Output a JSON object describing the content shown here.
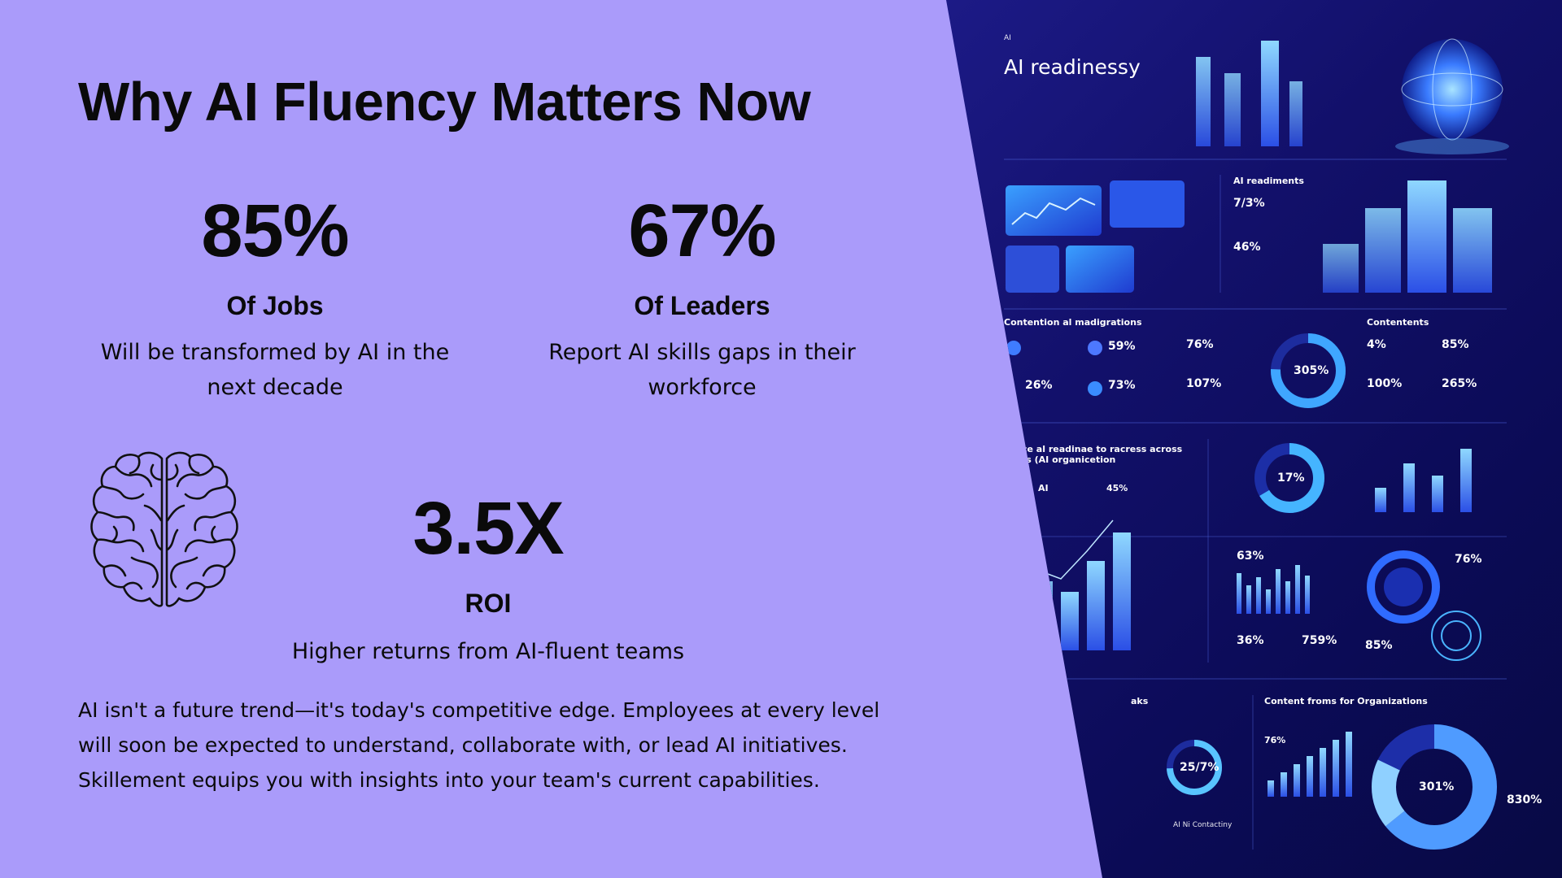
{
  "slide": {
    "title": "Why AI Fluency Matters Now",
    "stats": {
      "jobs": {
        "value": "85%",
        "label": "Of Jobs",
        "description": "Will be transformed by AI in the next decade"
      },
      "leaders": {
        "value": "67%",
        "label": "Of Leaders",
        "description": "Report AI skills gaps in their workforce"
      },
      "roi": {
        "value": "3.5X",
        "label": "ROI",
        "description": "Higher returns from AI-fluent teams"
      }
    },
    "paragraph": "AI isn't a future trend—it's today's competitive edge. Employees at every level will soon be expected to understand, collaborate with, or lead AI initiatives. Skillement equips you with insights into your team's current capabilities.",
    "brain_icon": "brain-icon"
  },
  "infographic": {
    "small_tag": "AI",
    "heading": "AI readinessy",
    "section_readiness": "AI readiments",
    "readiness_values": [
      "7/3%",
      "46%"
    ],
    "section_contention": "Contention al madigrations",
    "section_contents": "Contentents",
    "contention_values": [
      "59%",
      "76%",
      "26%",
      "73%",
      "107%"
    ],
    "contents_values": [
      "4%",
      "85%",
      "100%",
      "265%"
    ],
    "donut_a": "305%",
    "section_across": "ce al readinae to racress across ts (AI organicetion",
    "donut_b": "17%",
    "small_label_ai": "AI",
    "small_label_45": "45%",
    "lower_values": [
      "63%",
      "76%",
      "36%",
      "759%",
      "85%"
    ],
    "section_bottom_left": "aks",
    "section_bottom_right": "Content froms for Organizations",
    "donut_c": "25/7%",
    "donut_d": "301%",
    "bottom_values": [
      "76%",
      "830%"
    ],
    "footer_label": "AI Ni Contactiny",
    "colors": {
      "slide_bg": "#aa9bfa",
      "panel_bg": "#12106a",
      "accent_blue": "#3f7cff",
      "accent_cyan": "#56c8ff"
    }
  }
}
